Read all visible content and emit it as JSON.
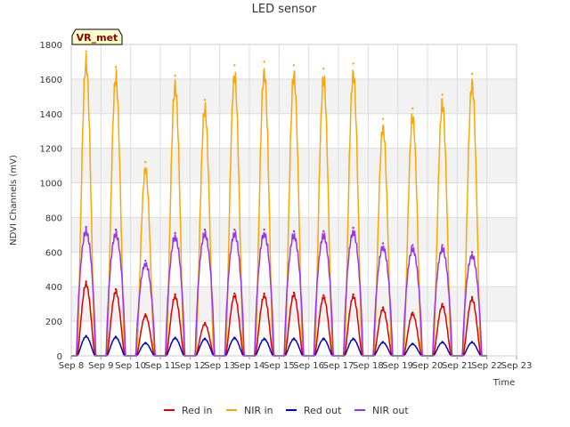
{
  "chart_data": {
    "type": "line",
    "title": "LED sensor",
    "xlabel": "Time",
    "ylabel": "NDVI Channels (mV)",
    "badge": "VR_met",
    "ylim": [
      0,
      1800
    ],
    "yticks": [
      0,
      200,
      400,
      600,
      800,
      1000,
      1200,
      1400,
      1600,
      1800
    ],
    "xlim": [
      8,
      23
    ],
    "xticks": [
      {
        "x": 8,
        "label": "Sep 8"
      },
      {
        "x": 9,
        "label": "Sep 9"
      },
      {
        "x": 10,
        "label": "Sep 10"
      },
      {
        "x": 11,
        "label": "Sep 11"
      },
      {
        "x": 12,
        "label": "Sep 12"
      },
      {
        "x": 13,
        "label": "Sep 13"
      },
      {
        "x": 14,
        "label": "Sep 14"
      },
      {
        "x": 15,
        "label": "Sep 15"
      },
      {
        "x": 16,
        "label": "Sep 16"
      },
      {
        "x": 17,
        "label": "Sep 17"
      },
      {
        "x": 18,
        "label": "Sep 18"
      },
      {
        "x": 19,
        "label": "Sep 19"
      },
      {
        "x": 20,
        "label": "Sep 20"
      },
      {
        "x": 21,
        "label": "Sep 21"
      },
      {
        "x": 22,
        "label": "Sep 22"
      },
      {
        "x": 23,
        "label": "Sep 23"
      }
    ],
    "day_centers": [
      8.5,
      9.5,
      10.5,
      11.5,
      12.5,
      13.5,
      14.5,
      15.5,
      16.5,
      17.5,
      18.5,
      19.5,
      20.5,
      21.5
    ],
    "series": [
      {
        "name": "Red in",
        "color": "#dd0000",
        "peaks": [
          430,
          385,
          240,
          355,
          190,
          360,
          360,
          365,
          350,
          355,
          280,
          250,
          300,
          340
        ]
      },
      {
        "name": "NIR in",
        "color": "#ffa500",
        "peaks": [
          1760,
          1670,
          1120,
          1620,
          1480,
          1680,
          1700,
          1680,
          1660,
          1690,
          1370,
          1430,
          1510,
          1630
        ]
      },
      {
        "name": "Red out",
        "color": "#0000cc",
        "peaks": [
          115,
          110,
          75,
          105,
          100,
          105,
          100,
          100,
          100,
          100,
          80,
          70,
          80,
          80
        ]
      },
      {
        "name": "NIR out",
        "color": "#9933ee",
        "peaks": [
          745,
          730,
          550,
          710,
          730,
          730,
          730,
          720,
          720,
          740,
          650,
          640,
          640,
          600
        ]
      }
    ]
  }
}
